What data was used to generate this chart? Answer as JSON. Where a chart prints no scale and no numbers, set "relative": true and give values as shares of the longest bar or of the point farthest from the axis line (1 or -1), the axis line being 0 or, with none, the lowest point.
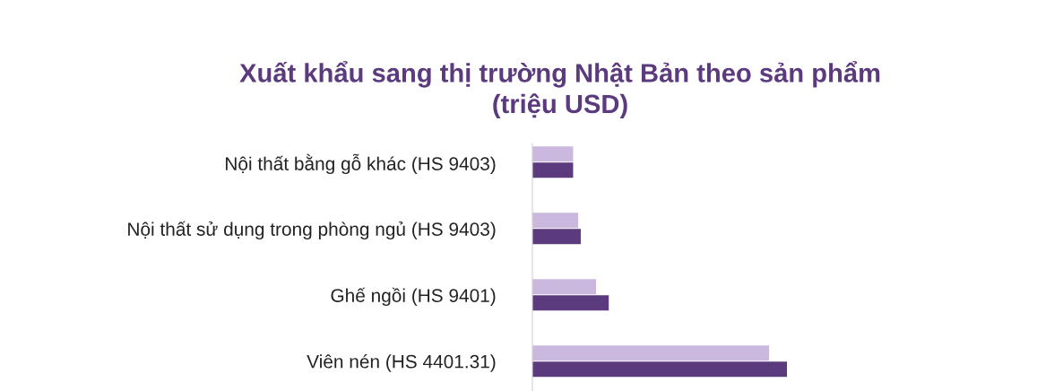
{
  "chart_data": {
    "type": "bar",
    "orientation": "horizontal",
    "relative": true,
    "title": "Xuất khẩu sang thị trường Nhật Bản theo sản phẩm\n(triệu USD)",
    "categories": [
      "Nội thất bằng gỗ khác (HS 9403)",
      "Nội thất sử dụng trong phòng ngủ (HS 9403)",
      "Ghế ngồi (HS 9401)",
      "Viên nén (HS 4401.31)"
    ],
    "series": [
      {
        "color": "#cbb8de",
        "values": [
          0.16,
          0.18,
          0.25,
          0.93
        ]
      },
      {
        "color": "#5b3a7e",
        "values": [
          0.16,
          0.19,
          0.3,
          1.0
        ]
      }
    ],
    "grid": false,
    "legend": false
  }
}
